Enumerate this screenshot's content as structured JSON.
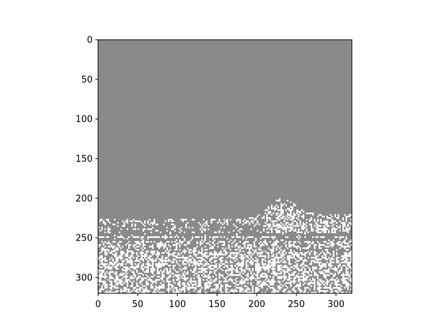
{
  "chart_data": {
    "type": "heatmap",
    "title": "",
    "xlabel": "",
    "ylabel": "",
    "image_size": [
      320,
      320
    ],
    "xlim": [
      0,
      320
    ],
    "ylim": [
      320,
      0
    ],
    "y_inverted": true,
    "x_ticks": [
      0,
      50,
      100,
      150,
      200,
      250,
      300
    ],
    "y_ticks": [
      0,
      50,
      100,
      150,
      200,
      250,
      300
    ],
    "x_tick_labels": [
      "0",
      "50",
      "100",
      "150",
      "200",
      "250",
      "300"
    ],
    "y_tick_labels": [
      "0",
      "50",
      "100",
      "150",
      "200",
      "250",
      "300"
    ],
    "colormap": "gray",
    "pixel_values": [
      "gray",
      "white"
    ],
    "colors": {
      "gray": "#8a8a8a",
      "white": "#ffffff",
      "axis": "#000000"
    },
    "regions": [
      {
        "name": "uniform gray upper region",
        "value": "gray",
        "rows": [
          0,
          210
        ]
      },
      {
        "name": "boundary region",
        "value": "mixed gray and white",
        "rows": [
          210,
          245
        ]
      },
      {
        "name": "horizontal band",
        "value": "mostly gray",
        "rows": [
          245,
          255
        ]
      },
      {
        "name": "textured lower region",
        "value": "mixed gray and white",
        "rows": [
          255,
          320
        ]
      }
    ],
    "grid": false
  }
}
